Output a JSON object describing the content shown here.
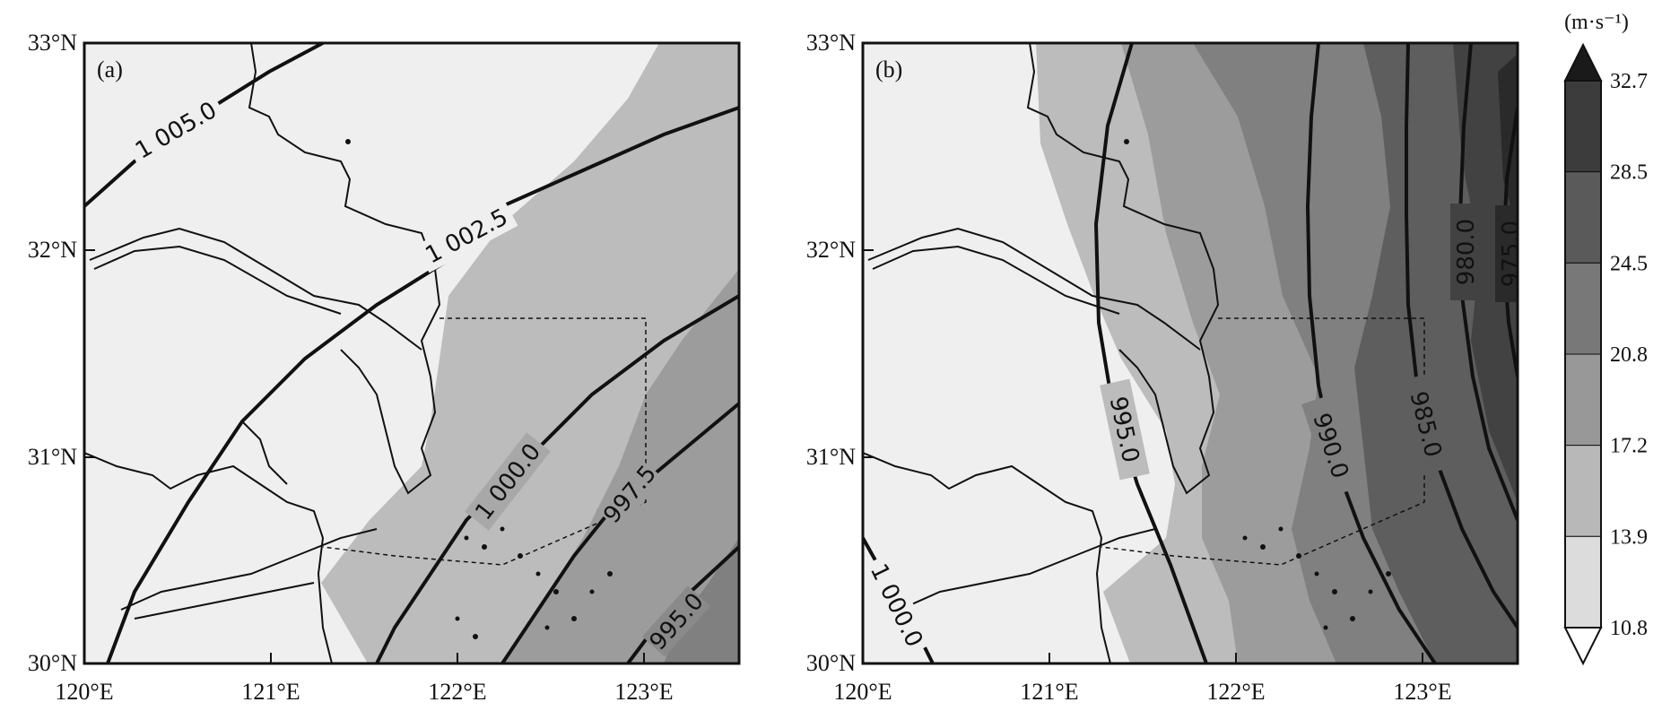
{
  "panels": [
    {
      "label": "(a)",
      "contour_labels": [
        "1 005.0",
        "1 002.5",
        "1 000.0",
        "997.5",
        "995.0"
      ]
    },
    {
      "label": "(b)",
      "contour_labels": [
        "995.0",
        "990.0",
        "985.0",
        "980.0",
        "975.0",
        "1 000.0"
      ]
    }
  ],
  "axes": {
    "x_ticks": [
      "120°E",
      "121°E",
      "122°E",
      "123°E"
    ],
    "y_ticks": [
      "33°N",
      "32°N",
      "31°N",
      "30°N"
    ]
  },
  "colorbar": {
    "unit": "(m·s⁻¹)",
    "levels": [
      "32.7",
      "28.5",
      "24.5",
      "20.8",
      "17.2",
      "13.9",
      "10.8"
    ],
    "colors": [
      "#1a1a1a",
      "#3c3c3c",
      "#5a5a5a",
      "#787878",
      "#989898",
      "#b8b8b8",
      "#dcdcdc"
    ]
  },
  "chart_data": {
    "type": "contour",
    "x_range": [
      120.0,
      123.5
    ],
    "y_range": [
      30.0,
      33.0
    ],
    "xlabel": "",
    "ylabel": "",
    "shaded_field_unit": "m·s⁻¹",
    "shading_levels": [
      10.8,
      13.9,
      17.2,
      20.8,
      24.5,
      28.5,
      32.7
    ],
    "panels": [
      {
        "name": "(a)",
        "isobars": [
          1005.0,
          1002.5,
          1000.0,
          997.5,
          995.0
        ]
      },
      {
        "name": "(b)",
        "isobars": [
          1000.0,
          995.0,
          990.0,
          985.0,
          980.0,
          975.0
        ]
      }
    ]
  }
}
